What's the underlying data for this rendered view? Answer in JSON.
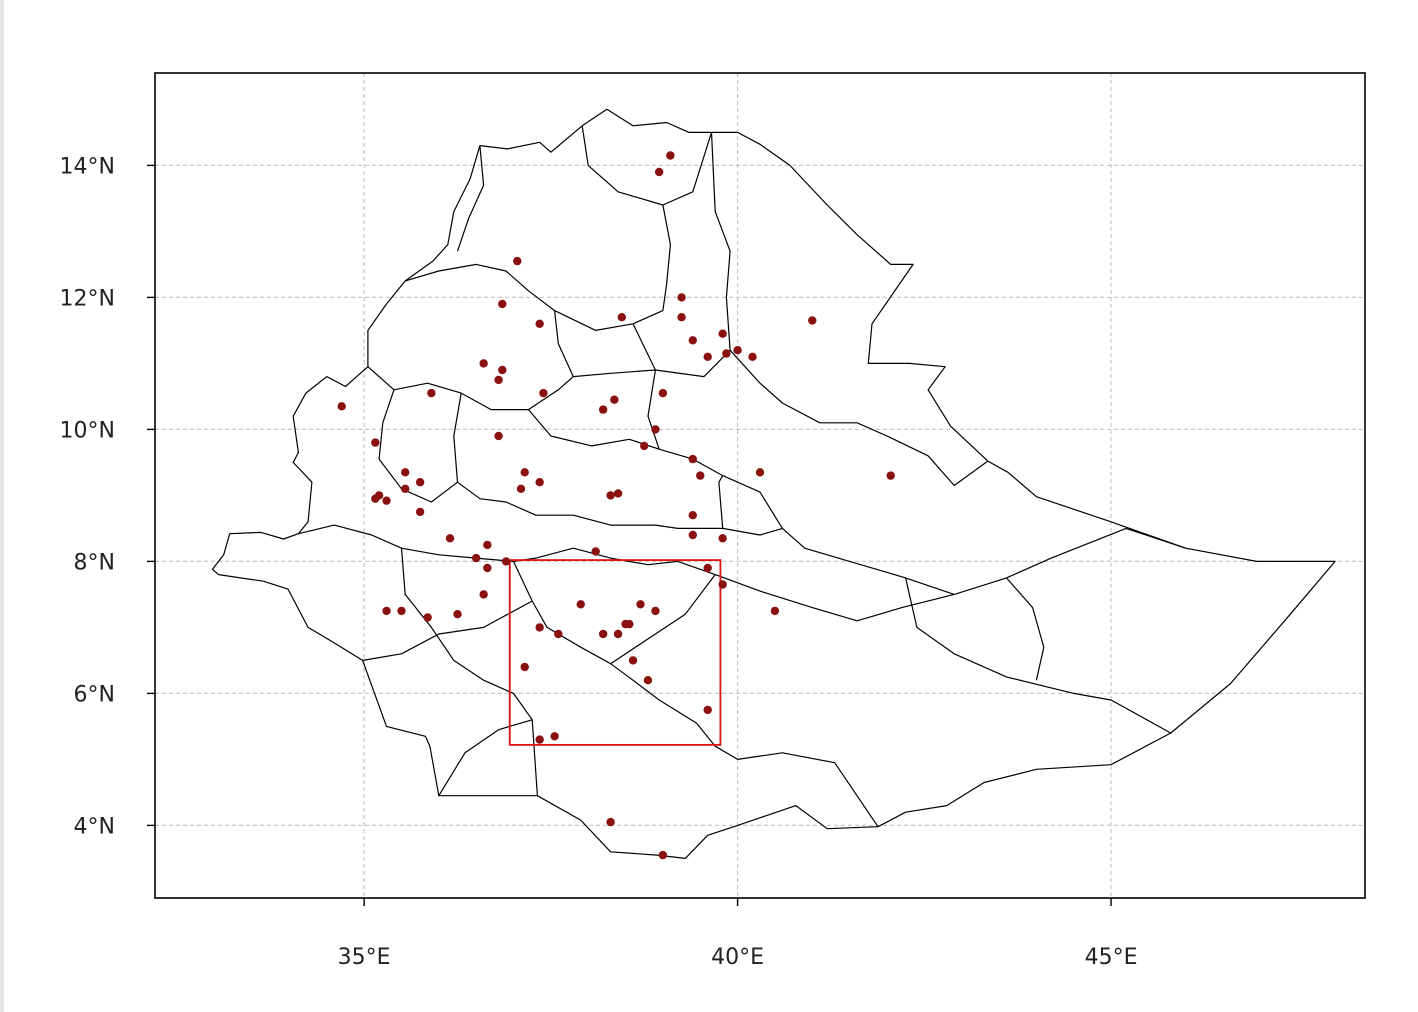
{
  "chart_data": {
    "type": "scatter",
    "title": "",
    "xlabel": "",
    "ylabel": "",
    "xlim": [
      32.2,
      48.4
    ],
    "ylim": [
      2.9,
      15.4
    ],
    "grid": true,
    "x_ticks": [
      {
        "value": 35,
        "label": "35°E"
      },
      {
        "value": 40,
        "label": "40°E"
      },
      {
        "value": 45,
        "label": "45°E"
      }
    ],
    "y_ticks": [
      {
        "value": 4,
        "label": "4°N"
      },
      {
        "value": 6,
        "label": "6°N"
      },
      {
        "value": 8,
        "label": "8°N"
      },
      {
        "value": 10,
        "label": "10°N"
      },
      {
        "value": 12,
        "label": "12°N"
      },
      {
        "value": 14,
        "label": "14°N"
      }
    ],
    "colors": {
      "stations": "#8b1010",
      "study_area": "#e01010",
      "borders": "#000000",
      "grid": "#c8c8c8"
    },
    "study_area": {
      "lon": [
        36.95,
        39.77
      ],
      "lat": [
        5.22,
        8.02
      ]
    },
    "outline": [
      [
        32.97,
        7.88
      ],
      [
        33.12,
        8.1
      ],
      [
        33.2,
        8.42
      ],
      [
        33.62,
        8.44
      ],
      [
        33.92,
        8.34
      ],
      [
        34.12,
        8.42
      ],
      [
        34.25,
        8.6
      ],
      [
        34.3,
        9.2
      ],
      [
        34.05,
        9.5
      ],
      [
        34.12,
        9.65
      ],
      [
        34.05,
        10.2
      ],
      [
        34.22,
        10.55
      ],
      [
        34.5,
        10.8
      ],
      [
        34.75,
        10.65
      ],
      [
        35.05,
        10.95
      ],
      [
        35.05,
        11.5
      ],
      [
        35.3,
        11.9
      ],
      [
        35.55,
        12.25
      ],
      [
        35.92,
        12.55
      ],
      [
        36.12,
        12.8
      ],
      [
        36.2,
        13.3
      ],
      [
        36.42,
        13.8
      ],
      [
        36.55,
        14.3
      ],
      [
        36.92,
        14.25
      ],
      [
        37.35,
        14.35
      ],
      [
        37.5,
        14.2
      ],
      [
        37.92,
        14.6
      ],
      [
        38.25,
        14.85
      ],
      [
        38.6,
        14.6
      ],
      [
        39.05,
        14.65
      ],
      [
        39.35,
        14.5
      ],
      [
        39.65,
        14.5
      ],
      [
        40.0,
        14.5
      ],
      [
        40.3,
        14.32
      ],
      [
        40.7,
        14.0
      ],
      [
        41.2,
        13.4
      ],
      [
        41.6,
        12.95
      ],
      [
        42.05,
        12.5
      ],
      [
        42.35,
        12.5
      ],
      [
        41.8,
        11.6
      ],
      [
        41.75,
        11.0
      ],
      [
        42.3,
        11.0
      ],
      [
        42.78,
        10.95
      ],
      [
        42.55,
        10.6
      ],
      [
        42.85,
        10.05
      ],
      [
        43.35,
        9.52
      ],
      [
        43.62,
        9.35
      ],
      [
        44.0,
        8.98
      ],
      [
        45.0,
        8.6
      ],
      [
        46.0,
        8.2
      ],
      [
        46.95,
        8.0
      ],
      [
        48.0,
        8.0
      ],
      [
        47.4,
        7.2
      ],
      [
        46.6,
        6.15
      ],
      [
        45.8,
        5.4
      ],
      [
        45.0,
        4.92
      ],
      [
        44.0,
        4.85
      ],
      [
        43.3,
        4.65
      ],
      [
        42.8,
        4.3
      ],
      [
        42.25,
        4.2
      ],
      [
        41.88,
        3.98
      ],
      [
        41.2,
        3.95
      ],
      [
        40.78,
        4.3
      ],
      [
        40.0,
        4.0
      ],
      [
        39.6,
        3.85
      ],
      [
        39.3,
        3.5
      ],
      [
        38.92,
        3.55
      ],
      [
        38.3,
        3.6
      ],
      [
        37.9,
        4.08
      ],
      [
        37.32,
        4.45
      ],
      [
        36.85,
        4.45
      ],
      [
        36.0,
        4.45
      ],
      [
        35.88,
        5.2
      ],
      [
        35.82,
        5.35
      ],
      [
        35.3,
        5.5
      ],
      [
        34.98,
        6.5
      ],
      [
        34.55,
        6.8
      ],
      [
        34.25,
        7.0
      ],
      [
        33.98,
        7.58
      ],
      [
        33.65,
        7.7
      ],
      [
        33.05,
        7.8
      ],
      [
        32.97,
        7.88
      ]
    ],
    "internal_borders": [
      [
        [
          36.55,
          14.3
        ],
        [
          36.6,
          13.7
        ],
        [
          36.4,
          13.2
        ],
        [
          36.25,
          12.7
        ]
      ],
      [
        [
          37.92,
          14.6
        ],
        [
          38.0,
          14.0
        ],
        [
          38.4,
          13.6
        ],
        [
          39.0,
          13.4
        ],
        [
          39.4,
          13.6
        ],
        [
          39.65,
          14.5
        ]
      ],
      [
        [
          39.0,
          13.4
        ],
        [
          39.1,
          12.8
        ],
        [
          39.05,
          12.2
        ],
        [
          39.0,
          11.8
        ],
        [
          38.6,
          11.6
        ],
        [
          38.1,
          11.5
        ],
        [
          37.55,
          11.8
        ],
        [
          37.2,
          12.1
        ],
        [
          36.9,
          12.4
        ],
        [
          36.5,
          12.5
        ],
        [
          36.0,
          12.4
        ],
        [
          35.55,
          12.25
        ]
      ],
      [
        [
          39.65,
          14.5
        ],
        [
          39.7,
          13.3
        ],
        [
          39.9,
          12.7
        ],
        [
          39.85,
          12.0
        ],
        [
          39.9,
          11.2
        ],
        [
          40.3,
          10.7
        ],
        [
          40.6,
          10.4
        ],
        [
          41.1,
          10.1
        ],
        [
          41.6,
          10.1
        ],
        [
          42.0,
          9.9
        ],
        [
          42.55,
          9.6
        ],
        [
          42.9,
          9.15
        ],
        [
          43.35,
          9.52
        ]
      ],
      [
        [
          37.55,
          11.8
        ],
        [
          37.6,
          11.3
        ],
        [
          37.8,
          10.8
        ],
        [
          37.6,
          10.6
        ],
        [
          37.2,
          10.3
        ],
        [
          36.7,
          10.3
        ],
        [
          36.3,
          10.55
        ],
        [
          35.85,
          10.7
        ],
        [
          35.4,
          10.6
        ],
        [
          35.05,
          10.95
        ]
      ],
      [
        [
          37.8,
          10.8
        ],
        [
          38.3,
          10.85
        ],
        [
          38.9,
          10.9
        ],
        [
          39.55,
          10.8
        ],
        [
          39.9,
          11.2
        ]
      ],
      [
        [
          38.6,
          11.6
        ],
        [
          38.9,
          10.9
        ],
        [
          38.8,
          10.2
        ],
        [
          38.95,
          9.7
        ],
        [
          39.4,
          9.55
        ],
        [
          39.8,
          9.3
        ],
        [
          40.3,
          9.05
        ],
        [
          40.6,
          8.5
        ],
        [
          40.9,
          8.2
        ],
        [
          41.5,
          8.0
        ],
        [
          42.25,
          7.75
        ],
        [
          42.9,
          7.5
        ]
      ],
      [
        [
          37.2,
          10.3
        ],
        [
          37.5,
          9.9
        ],
        [
          38.05,
          9.75
        ],
        [
          38.55,
          9.85
        ],
        [
          38.95,
          9.7
        ]
      ],
      [
        [
          36.3,
          10.55
        ],
        [
          36.2,
          9.9
        ],
        [
          36.25,
          9.2
        ],
        [
          36.55,
          8.95
        ],
        [
          36.9,
          8.9
        ],
        [
          37.3,
          8.7
        ],
        [
          37.8,
          8.7
        ],
        [
          38.3,
          8.55
        ],
        [
          38.9,
          8.55
        ],
        [
          39.2,
          8.5
        ],
        [
          39.8,
          8.5
        ],
        [
          40.3,
          8.4
        ],
        [
          40.6,
          8.5
        ]
      ],
      [
        [
          35.4,
          10.6
        ],
        [
          35.25,
          10.1
        ],
        [
          35.2,
          9.55
        ],
        [
          35.5,
          9.1
        ],
        [
          35.9,
          8.9
        ],
        [
          36.25,
          9.2
        ]
      ],
      [
        [
          34.12,
          8.42
        ],
        [
          34.6,
          8.55
        ],
        [
          35.1,
          8.4
        ],
        [
          35.5,
          8.2
        ],
        [
          36.0,
          8.1
        ],
        [
          36.5,
          8.05
        ],
        [
          37.0,
          8.0
        ],
        [
          37.3,
          8.05
        ],
        [
          37.8,
          8.2
        ],
        [
          38.3,
          8.05
        ],
        [
          38.8,
          7.95
        ],
        [
          39.2,
          8.0
        ],
        [
          39.7,
          7.8
        ],
        [
          40.3,
          7.55
        ],
        [
          41.0,
          7.3
        ],
        [
          41.6,
          7.1
        ],
        [
          42.2,
          7.3
        ],
        [
          42.9,
          7.5
        ],
        [
          43.6,
          7.75
        ],
        [
          44.2,
          8.05
        ],
        [
          45.2,
          8.5
        ],
        [
          46.0,
          8.2
        ]
      ],
      [
        [
          35.5,
          8.2
        ],
        [
          35.55,
          7.5
        ],
        [
          35.9,
          7.0
        ],
        [
          36.2,
          6.5
        ],
        [
          36.6,
          6.2
        ],
        [
          37.0,
          6.0
        ],
        [
          37.25,
          5.6
        ],
        [
          37.32,
          4.45
        ]
      ],
      [
        [
          37.0,
          8.0
        ],
        [
          37.25,
          7.4
        ],
        [
          37.45,
          7.0
        ],
        [
          37.9,
          6.7
        ],
        [
          38.3,
          6.45
        ],
        [
          38.6,
          6.2
        ],
        [
          38.95,
          5.9
        ],
        [
          39.45,
          5.55
        ],
        [
          39.7,
          5.2
        ],
        [
          40.0,
          5.0
        ],
        [
          40.6,
          5.1
        ],
        [
          41.3,
          4.95
        ],
        [
          41.88,
          3.98
        ]
      ],
      [
        [
          39.7,
          7.8
        ],
        [
          39.3,
          7.2
        ],
        [
          38.9,
          6.9
        ],
        [
          38.3,
          6.45
        ]
      ],
      [
        [
          36.0,
          4.45
        ],
        [
          36.35,
          5.1
        ],
        [
          36.8,
          5.45
        ],
        [
          37.25,
          5.6
        ]
      ],
      [
        [
          34.98,
          6.5
        ],
        [
          35.5,
          6.6
        ],
        [
          36.0,
          6.9
        ],
        [
          36.6,
          7.0
        ],
        [
          37.25,
          7.4
        ]
      ],
      [
        [
          39.8,
          8.5
        ],
        [
          39.75,
          9.2
        ],
        [
          39.8,
          9.3
        ]
      ],
      [
        [
          42.25,
          7.75
        ],
        [
          42.4,
          7.0
        ],
        [
          42.9,
          6.6
        ],
        [
          43.6,
          6.25
        ],
        [
          44.5,
          6.0
        ],
        [
          45.0,
          5.9
        ],
        [
          45.8,
          5.4
        ]
      ],
      [
        [
          43.6,
          7.75
        ],
        [
          43.95,
          7.3
        ],
        [
          44.1,
          6.7
        ],
        [
          44.0,
          6.2
        ]
      ]
    ],
    "points": [
      {
        "x": 39.1,
        "y": 14.15
      },
      {
        "x": 38.95,
        "y": 13.9
      },
      {
        "x": 37.05,
        "y": 12.55
      },
      {
        "x": 36.85,
        "y": 11.9
      },
      {
        "x": 39.25,
        "y": 12.0
      },
      {
        "x": 37.35,
        "y": 11.6
      },
      {
        "x": 38.45,
        "y": 11.7
      },
      {
        "x": 39.25,
        "y": 11.7
      },
      {
        "x": 39.4,
        "y": 11.35
      },
      {
        "x": 39.8,
        "y": 11.45
      },
      {
        "x": 39.6,
        "y": 11.1
      },
      {
        "x": 39.85,
        "y": 11.15
      },
      {
        "x": 40.0,
        "y": 11.2
      },
      {
        "x": 40.2,
        "y": 11.1
      },
      {
        "x": 41.0,
        "y": 11.65
      },
      {
        "x": 36.6,
        "y": 11.0
      },
      {
        "x": 36.85,
        "y": 10.9
      },
      {
        "x": 36.8,
        "y": 10.75
      },
      {
        "x": 37.4,
        "y": 10.55
      },
      {
        "x": 38.35,
        "y": 10.45
      },
      {
        "x": 38.2,
        "y": 10.3
      },
      {
        "x": 39.0,
        "y": 10.55
      },
      {
        "x": 34.7,
        "y": 10.35
      },
      {
        "x": 35.9,
        "y": 10.55
      },
      {
        "x": 38.9,
        "y": 10.0
      },
      {
        "x": 36.8,
        "y": 9.9
      },
      {
        "x": 38.75,
        "y": 9.75
      },
      {
        "x": 35.15,
        "y": 9.8
      },
      {
        "x": 39.4,
        "y": 9.55
      },
      {
        "x": 39.5,
        "y": 9.3
      },
      {
        "x": 40.3,
        "y": 9.35
      },
      {
        "x": 42.05,
        "y": 9.3
      },
      {
        "x": 35.55,
        "y": 9.35
      },
      {
        "x": 35.75,
        "y": 9.2
      },
      {
        "x": 35.55,
        "y": 9.1
      },
      {
        "x": 37.15,
        "y": 9.35
      },
      {
        "x": 37.1,
        "y": 9.1
      },
      {
        "x": 37.35,
        "y": 9.2
      },
      {
        "x": 38.3,
        "y": 9.0
      },
      {
        "x": 38.4,
        "y": 9.03
      },
      {
        "x": 35.15,
        "y": 8.95
      },
      {
        "x": 35.2,
        "y": 9.0
      },
      {
        "x": 35.3,
        "y": 8.92
      },
      {
        "x": 35.75,
        "y": 8.75
      },
      {
        "x": 36.15,
        "y": 8.35
      },
      {
        "x": 39.4,
        "y": 8.7
      },
      {
        "x": 39.4,
        "y": 8.4
      },
      {
        "x": 39.8,
        "y": 8.35
      },
      {
        "x": 36.65,
        "y": 8.25
      },
      {
        "x": 36.5,
        "y": 8.05
      },
      {
        "x": 38.1,
        "y": 8.15
      },
      {
        "x": 36.9,
        "y": 8.0
      },
      {
        "x": 36.65,
        "y": 7.9
      },
      {
        "x": 39.6,
        "y": 7.9
      },
      {
        "x": 39.8,
        "y": 7.65
      },
      {
        "x": 36.6,
        "y": 7.5
      },
      {
        "x": 37.9,
        "y": 7.35
      },
      {
        "x": 38.7,
        "y": 7.35
      },
      {
        "x": 38.9,
        "y": 7.25
      },
      {
        "x": 40.5,
        "y": 7.25
      },
      {
        "x": 35.3,
        "y": 7.25
      },
      {
        "x": 35.5,
        "y": 7.25
      },
      {
        "x": 35.85,
        "y": 7.15
      },
      {
        "x": 36.25,
        "y": 7.2
      },
      {
        "x": 37.35,
        "y": 7.0
      },
      {
        "x": 38.5,
        "y": 7.05
      },
      {
        "x": 38.55,
        "y": 7.05
      },
      {
        "x": 37.6,
        "y": 6.9
      },
      {
        "x": 38.2,
        "y": 6.9
      },
      {
        "x": 38.4,
        "y": 6.9
      },
      {
        "x": 38.6,
        "y": 6.5
      },
      {
        "x": 37.15,
        "y": 6.4
      },
      {
        "x": 38.8,
        "y": 6.2
      },
      {
        "x": 39.6,
        "y": 5.75
      },
      {
        "x": 37.35,
        "y": 5.3
      },
      {
        "x": 37.55,
        "y": 5.35
      },
      {
        "x": 38.3,
        "y": 4.05
      },
      {
        "x": 39.0,
        "y": 3.55
      }
    ]
  }
}
